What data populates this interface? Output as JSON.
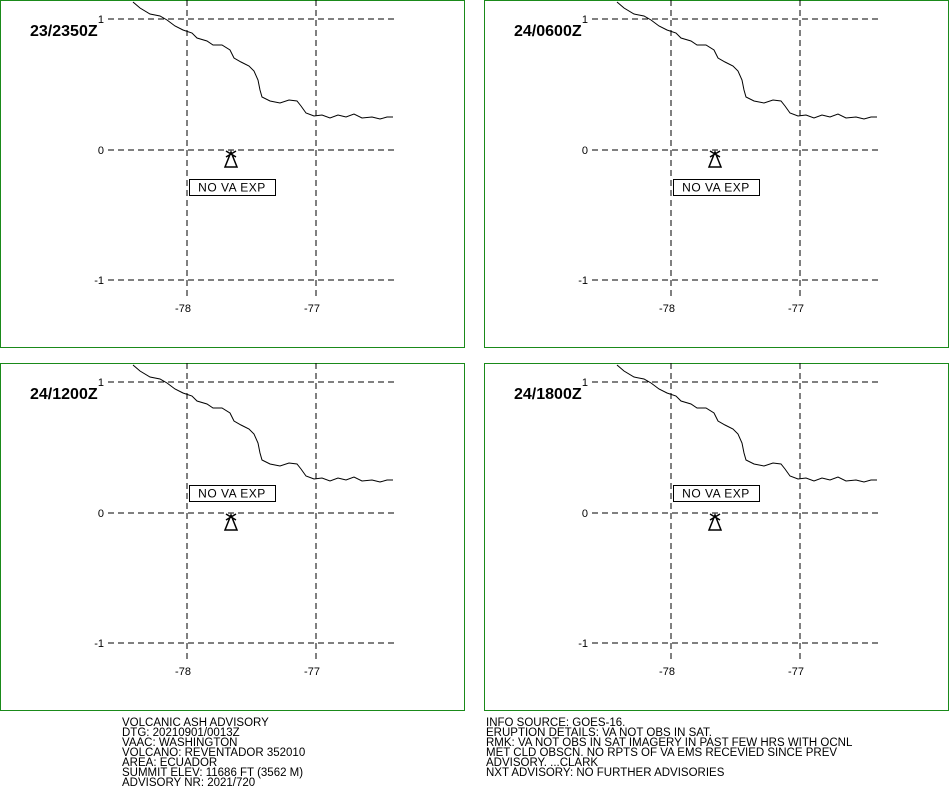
{
  "panels": [
    {
      "time": "23/2350Z",
      "label": "NO VA EXP",
      "lat_labels": [
        "1",
        "0",
        "-1"
      ],
      "lon_labels": [
        "-78",
        "-77"
      ]
    },
    {
      "time": "24/0600Z",
      "label": "NO VA EXP",
      "lat_labels": [
        "1",
        "0",
        "-1"
      ],
      "lon_labels": [
        "-78",
        "-77"
      ]
    },
    {
      "time": "24/1200Z",
      "label": "NO VA EXP",
      "lat_labels": [
        "1",
        "0",
        "-1"
      ],
      "lon_labels": [
        "-78",
        "-77"
      ]
    },
    {
      "time": "24/1800Z",
      "label": "NO VA EXP",
      "lat_labels": [
        "1",
        "0",
        "-1"
      ],
      "lon_labels": [
        "-78",
        "-77"
      ]
    }
  ],
  "advisory_left": [
    "VOLCANIC ASH ADVISORY",
    "DTG: 20210901/0013Z",
    "VAAC: WASHINGTON",
    "VOLCANO: REVENTADOR 352010",
    "AREA: ECUADOR",
    "SUMMIT ELEV: 11686 FT (3562 M)",
    "ADVISORY NR: 2021/720"
  ],
  "advisory_right": [
    "INFO SOURCE: GOES-16.",
    "ERUPTION DETAILS: VA NOT OBS IN SAT.",
    "RMK: VA NOT OBS IN SAT IMAGERY IN PAST FEW HRS WITH OCNL",
    "MET CLD OBSCN. NO RPTS OF VA EMS RECEVIED SINCE PREV",
    "ADVISORY. ...CLARK",
    "NXT ADVISORY: NO FURTHER ADVISORIES"
  ]
}
